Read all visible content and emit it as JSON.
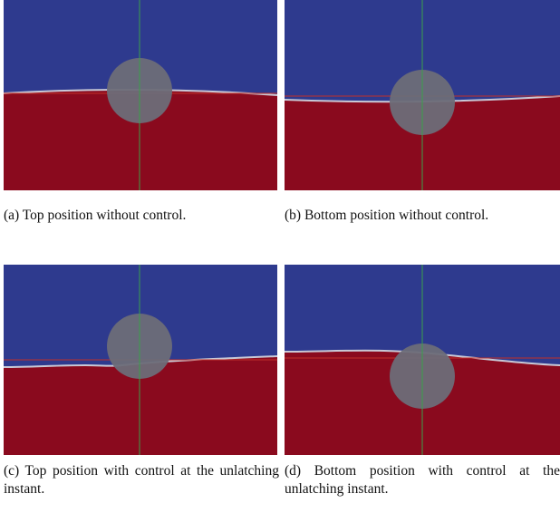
{
  "panels": [
    {
      "caption": "(a) Top position without control."
    },
    {
      "caption": "(b) Bottom position without control."
    },
    {
      "caption": "(c) Top position with control at the unlatching instant."
    },
    {
      "caption": "(d) Bottom position with control at the unlatching instant."
    }
  ]
}
